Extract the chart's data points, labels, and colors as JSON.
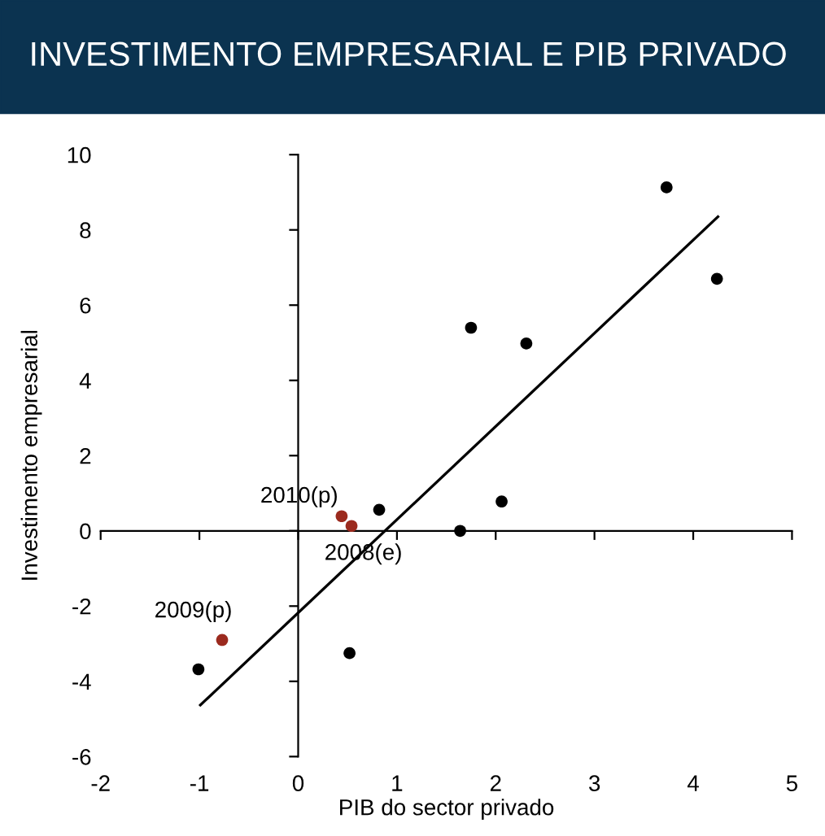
{
  "chart_data": {
    "type": "scatter",
    "title": "INVESTIMENTO EMPRESARIAL E PIB PRIVADO",
    "xlabel": "PIB do sector privado",
    "ylabel": "Investimento empresarial",
    "series": [
      {
        "color": "#000000",
        "marker": "circle",
        "x": [
          -1.01,
          0.52,
          0.82,
          1.64,
          2.06,
          1.75,
          2.31,
          3.73,
          4.24
        ],
        "values": [
          -3.68,
          -3.25,
          0.56,
          0.0,
          0.78,
          5.4,
          4.98,
          9.13,
          6.7
        ]
      },
      {
        "color": "#9b2a1e",
        "marker": "circle",
        "x": [
          -0.77,
          0.44,
          0.54
        ],
        "values": [
          -2.9,
          0.39,
          0.13
        ]
      },
      {
        "type": "line",
        "color": "#000000",
        "x": [
          -0.99,
          4.25
        ],
        "values": [
          -4.63,
          8.35
        ]
      }
    ],
    "annotations": [
      {
        "text": "2009(p)",
        "x": -0.77,
        "y": -2.9
      },
      {
        "text": "2010(p)",
        "x": 0.44,
        "y": 0.39
      },
      {
        "text": "2008(e)",
        "x": 0.54,
        "y": 0.13
      }
    ],
    "xlim": [
      -2,
      5
    ],
    "ylim": [
      -6,
      10
    ],
    "xticks": [
      -2,
      -1,
      0,
      1,
      2,
      3,
      4,
      5
    ],
    "yticks": [
      -6,
      -4,
      -2,
      0,
      2,
      4,
      6,
      8,
      10
    ],
    "legend": false
  }
}
